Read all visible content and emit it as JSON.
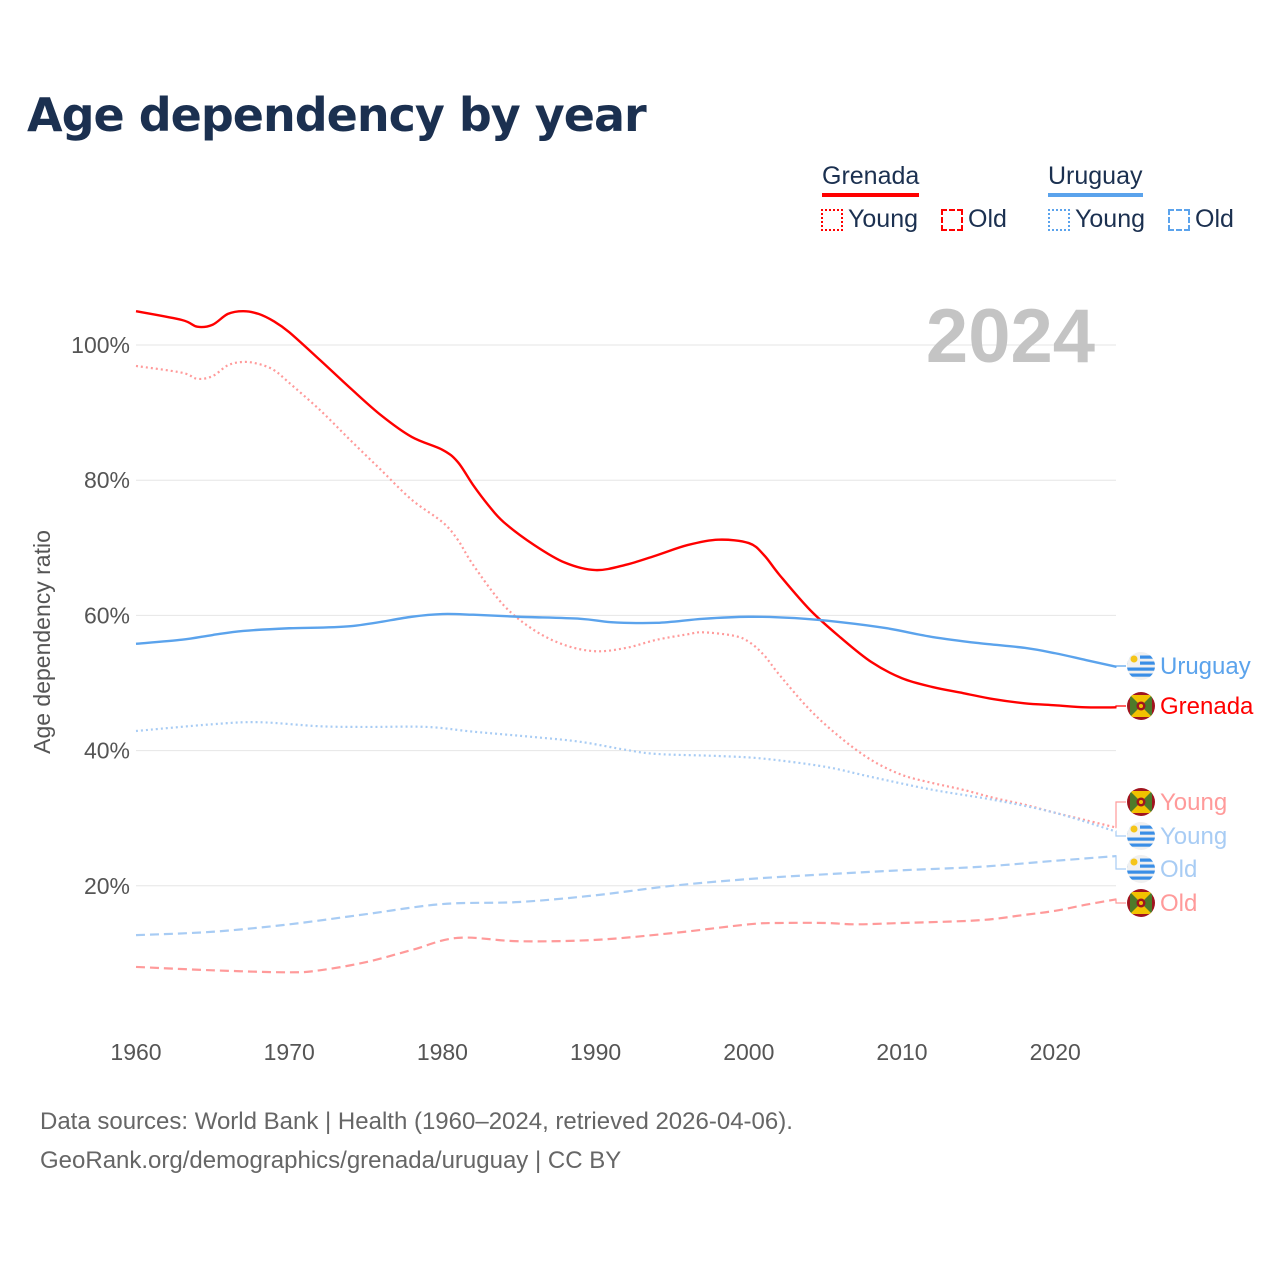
{
  "title": "Age dependency by year",
  "year_label": "2024",
  "legend": {
    "countries": [
      {
        "name": "Grenada",
        "color": "#ff0000",
        "light": "#ff9a9a"
      },
      {
        "name": "Uruguay",
        "color": "#5ba3ec",
        "light": "#a8ccf4"
      }
    ],
    "young_label": "Young",
    "old_label": "Old"
  },
  "footer": {
    "line1": "Data sources: World Bank | Health (1960–2024, retrieved 2026-04-06).",
    "line2": "GeoRank.org/demographics/grenada/uruguay | CC BY"
  },
  "chart_data": {
    "type": "line",
    "title": "Age dependency by year",
    "xlabel": "",
    "ylabel": "Age dependency ratio",
    "xlim": [
      1960,
      2024
    ],
    "ylim": [
      0,
      108
    ],
    "x_ticks": [
      "1960",
      "1970",
      "1980",
      "1990",
      "2000",
      "2010",
      "2020"
    ],
    "y_ticks": [
      "20%",
      "40%",
      "60%",
      "80%",
      "100%"
    ],
    "grid": true,
    "series": [
      {
        "name": "Grenada",
        "label": "Grenada",
        "country": "Grenada",
        "kind": "total",
        "style": "solid",
        "x": [
          1960,
          1963,
          1964,
          1965,
          1966,
          1967,
          1968,
          1969,
          1970,
          1972,
          1974,
          1976,
          1978,
          1980,
          1981,
          1982,
          1983,
          1984,
          1986,
          1988,
          1990,
          1992,
          1994,
          1996,
          1998,
          2000,
          2001,
          2002,
          2004,
          2006,
          2008,
          2010,
          2012,
          2014,
          2016,
          2018,
          2020,
          2022,
          2024
        ],
        "y": [
          105.0,
          103.7,
          102.7,
          103.0,
          104.6,
          105.0,
          104.6,
          103.5,
          101.9,
          97.8,
          93.6,
          89.6,
          86.4,
          84.5,
          82.7,
          79.3,
          76.3,
          73.8,
          70.4,
          67.8,
          66.7,
          67.5,
          68.9,
          70.4,
          71.2,
          70.7,
          68.9,
          66.0,
          60.8,
          56.7,
          53.1,
          50.7,
          49.4,
          48.5,
          47.6,
          47.0,
          46.7,
          46.4,
          46.4
        ]
      },
      {
        "name": "Grenada Young",
        "label": "Young",
        "country": "Grenada",
        "kind": "young",
        "style": "dotted",
        "x": [
          1960,
          1963,
          1964,
          1965,
          1966,
          1967,
          1968,
          1969,
          1970,
          1972,
          1974,
          1976,
          1978,
          1980,
          1981,
          1982,
          1984,
          1986,
          1988,
          1990,
          1992,
          1994,
          1996,
          1997,
          1999,
          2000,
          2001,
          2002,
          2004,
          2006,
          2008,
          2010,
          2012,
          2014,
          2016,
          2018,
          2020,
          2022,
          2024
        ],
        "y": [
          96.9,
          95.9,
          95.0,
          95.4,
          97.0,
          97.5,
          97.2,
          96.3,
          94.4,
          90.4,
          85.9,
          81.5,
          77.1,
          73.8,
          71.2,
          67.5,
          61.5,
          57.8,
          55.6,
          54.7,
          55.2,
          56.4,
          57.2,
          57.5,
          57.0,
          56.1,
          54.1,
          51.2,
          46.0,
          41.9,
          38.6,
          36.4,
          35.2,
          34.2,
          33.0,
          32.0,
          30.8,
          29.7,
          28.6
        ]
      },
      {
        "name": "Grenada Old",
        "label": "Old",
        "country": "Grenada",
        "kind": "old",
        "style": "dashed",
        "x": [
          1960,
          1965,
          1970,
          1972,
          1975,
          1978,
          1981,
          1985,
          1990,
          1995,
          2000,
          2002,
          2005,
          2007,
          2010,
          2015,
          2018,
          2020,
          2022,
          2024
        ],
        "y": [
          8.0,
          7.5,
          7.2,
          7.5,
          8.7,
          10.5,
          12.3,
          11.8,
          12.0,
          13.0,
          14.3,
          14.5,
          14.5,
          14.3,
          14.5,
          14.9,
          15.7,
          16.3,
          17.2,
          18.0
        ]
      },
      {
        "name": "Uruguay",
        "label": "Uruguay",
        "country": "Uruguay",
        "kind": "total",
        "style": "solid",
        "x": [
          1960,
          1963,
          1965,
          1967,
          1970,
          1974,
          1978,
          1980,
          1982,
          1985,
          1989,
          1991,
          1994,
          1997,
          2000,
          2003,
          2006,
          2009,
          2012,
          2015,
          2018,
          2020,
          2022,
          2024
        ],
        "y": [
          55.8,
          56.4,
          57.1,
          57.7,
          58.1,
          58.4,
          59.8,
          60.2,
          60.1,
          59.8,
          59.5,
          59.0,
          58.9,
          59.5,
          59.8,
          59.6,
          59.0,
          58.1,
          56.8,
          55.9,
          55.2,
          54.4,
          53.4,
          52.4
        ]
      },
      {
        "name": "Uruguay Young",
        "label": "Young",
        "country": "Uruguay",
        "kind": "young",
        "style": "dotted",
        "x": [
          1960,
          1965,
          1968,
          1972,
          1975,
          1979,
          1982,
          1986,
          1989,
          1992,
          1994,
          1998,
          2001,
          2005,
          2008,
          2012,
          2016,
          2020,
          2024
        ],
        "y": [
          42.9,
          43.9,
          44.2,
          43.6,
          43.5,
          43.5,
          42.8,
          42.0,
          41.3,
          40.1,
          39.5,
          39.2,
          38.8,
          37.6,
          36.1,
          34.2,
          32.7,
          30.8,
          28.0
        ]
      },
      {
        "name": "Uruguay Old",
        "label": "Old",
        "country": "Uruguay",
        "kind": "old",
        "style": "dashed",
        "x": [
          1960,
          1965,
          1970,
          1975,
          1980,
          1985,
          1990,
          1995,
          2000,
          2005,
          2010,
          2015,
          2020,
          2024
        ],
        "y": [
          12.7,
          13.2,
          14.3,
          15.8,
          17.3,
          17.6,
          18.6,
          20.0,
          21.0,
          21.7,
          22.3,
          22.8,
          23.7,
          24.4
        ]
      }
    ]
  }
}
